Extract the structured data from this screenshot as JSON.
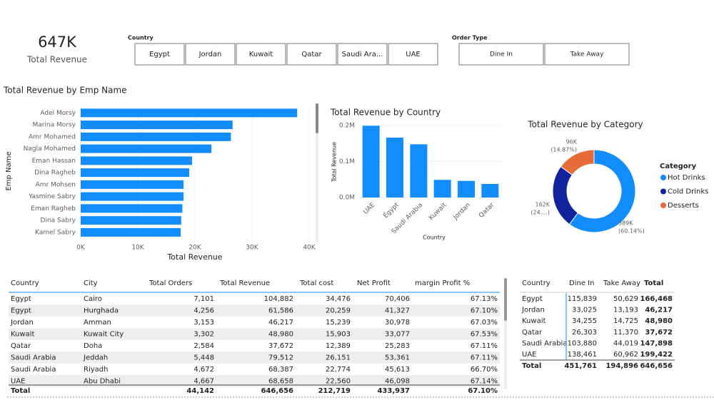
{
  "kpi": {
    "value": "647K",
    "label": "Total Revenue"
  },
  "slicers": [
    {
      "title": "Country",
      "items": [
        "Egypt",
        "Jordan",
        "Kuwait",
        "Qatar",
        "Saudi Ara...",
        "UAE"
      ]
    },
    {
      "title": "Order Type",
      "items": [
        "Dine In",
        "Take Away"
      ]
    }
  ],
  "chart_data": [
    {
      "type": "hbar",
      "title": "Total Revenue by Emp Name",
      "x_label": "Total Revenue",
      "y_label": "Emp Name",
      "categories": [
        "Adel Morsy",
        "Marina Morsy",
        "Amr Mohamed",
        "Nagla Mohamed",
        "Eman Hassan",
        "Dina Ragheb",
        "Amr Mohsen",
        "Yasmine Sabry",
        "Eman Ragheb",
        "Dina Sabry",
        "Kamel Sabry"
      ],
      "values": [
        37900,
        26600,
        26300,
        22900,
        19500,
        19000,
        18000,
        18000,
        17800,
        17600,
        17500
      ],
      "color": "#118DFF",
      "xlim": [
        0,
        40000
      ],
      "xticks": [
        {
          "value": 0,
          "label": "0K"
        },
        {
          "value": 10000,
          "label": "10K"
        },
        {
          "value": 20000,
          "label": "20K"
        },
        {
          "value": 30000,
          "label": "30K"
        },
        {
          "value": 40000,
          "label": "40K"
        }
      ]
    },
    {
      "type": "bar",
      "title": "Total Revenue by Country",
      "x_label": "Country",
      "y_label": "Total Revenue",
      "categories": [
        "UAE",
        "Egypt",
        "Saudi Arabia",
        "Kuwait",
        "Jordan",
        "Qatar"
      ],
      "values": [
        199422,
        166468,
        147898,
        48980,
        46217,
        37672
      ],
      "color": "#118DFF",
      "ylim": [
        0,
        210000
      ],
      "yticks": [
        {
          "value": 0,
          "label": "0.0M"
        },
        {
          "value": 100000,
          "label": "0.1M"
        },
        {
          "value": 200000,
          "label": "0.2M"
        }
      ]
    },
    {
      "type": "donut",
      "title": "Total Revenue by Category",
      "legend_title": "Category",
      "categories": [
        "Hot  Drinks",
        "Cold  Drinks",
        "Desserts"
      ],
      "values": [
        388899,
        161599,
        96158
      ],
      "value_labels": [
        "389K",
        "162K",
        "96K"
      ],
      "percent_labels": [
        "(60.14%)",
        "(24....)",
        "(14.87%)"
      ],
      "colors": [
        "#118DFF",
        "#12239E",
        "#E66C37"
      ]
    }
  ],
  "table": {
    "columns": [
      "Country",
      "City",
      "Total Orders",
      "Total Revenue",
      "Total cost",
      "Net Profit",
      "margin Profit %"
    ],
    "rows": [
      [
        "Egypt",
        "Cairo",
        "7,101",
        "104,882",
        "34,476",
        "70,406",
        "67.13%"
      ],
      [
        "Egypt",
        "Hurghada",
        "4,256",
        "61,586",
        "20,259",
        "41,327",
        "67.10%"
      ],
      [
        "Jordan",
        "Amman",
        "3,153",
        "46,217",
        "15,239",
        "30,978",
        "67.03%"
      ],
      [
        "Kuwait",
        "Kuwait City",
        "3,302",
        "48,980",
        "15,903",
        "33,077",
        "67.53%"
      ],
      [
        "Qatar",
        "Doha",
        "2,584",
        "37,672",
        "12,389",
        "25,283",
        "67.11%"
      ],
      [
        "Saudi Arabia",
        "Jeddah",
        "5,448",
        "79,512",
        "26,151",
        "53,361",
        "67.11%"
      ],
      [
        "Saudi Arabia",
        "Riyadh",
        "4,672",
        "68,387",
        "22,774",
        "45,613",
        "66.70%"
      ],
      [
        "UAE",
        "Abu Dhabi",
        "4,667",
        "68,658",
        "22,560",
        "46,098",
        "67.14%"
      ]
    ],
    "total": [
      "Total",
      "",
      "44,142",
      "646,656",
      "212,719",
      "433,937",
      "67.10%"
    ]
  },
  "matrix": {
    "columns": [
      "Country",
      "Dine In",
      "Take Away",
      "Total"
    ],
    "rows": [
      [
        "Egypt",
        "115,839",
        "50,629",
        "166,468"
      ],
      [
        "Jordan",
        "33,025",
        "13,193",
        "46,217"
      ],
      [
        "Kuwait",
        "34,255",
        "14,725",
        "48,980"
      ],
      [
        "Qatar",
        "26,303",
        "11,370",
        "37,672"
      ],
      [
        "Saudi Arabia",
        "103,880",
        "44,019",
        "147,898"
      ],
      [
        "UAE",
        "138,461",
        "60,962",
        "199,422"
      ]
    ],
    "total": [
      "Total",
      "451,761",
      "194,896",
      "646,656"
    ]
  }
}
